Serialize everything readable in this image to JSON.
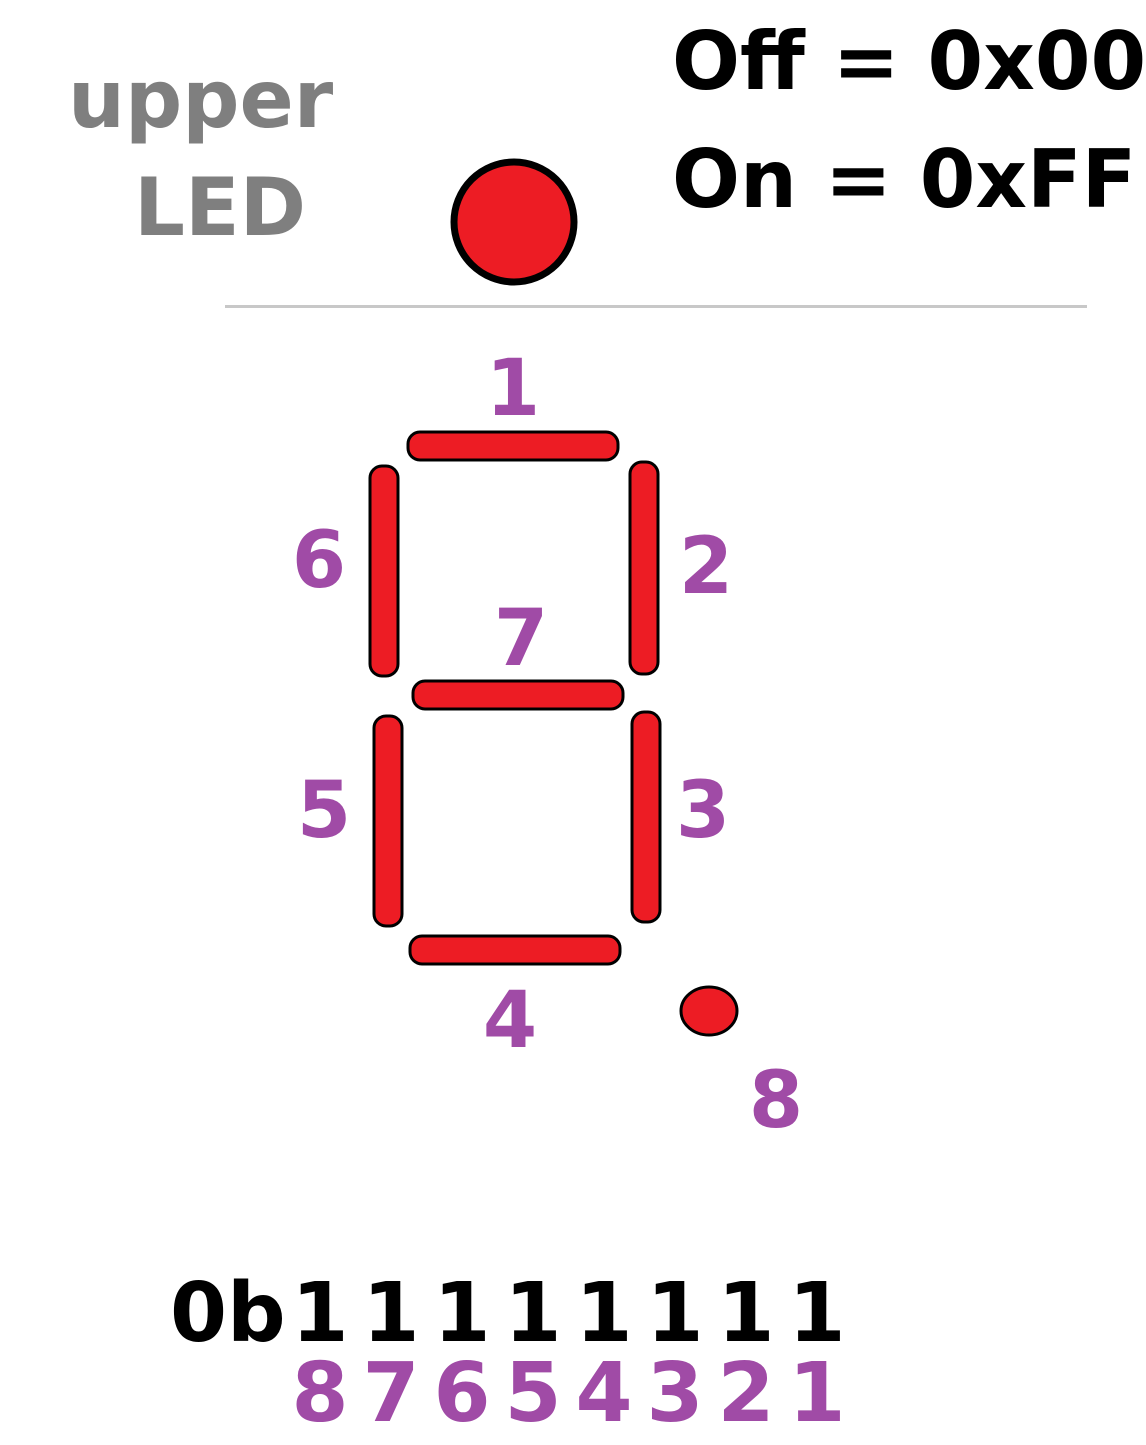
{
  "upper_led": {
    "line1": "upper",
    "line2": "LED"
  },
  "legend": {
    "off": "Off = 0x00",
    "on": "On = 0xFF"
  },
  "segments": [
    "1",
    "2",
    "3",
    "4",
    "5",
    "6",
    "7",
    "8"
  ],
  "binary": {
    "prefix": "0b",
    "bits": [
      "1",
      "1",
      "1",
      "1",
      "1",
      "1",
      "1",
      "1"
    ],
    "positions": [
      "8",
      "7",
      "6",
      "5",
      "4",
      "3",
      "2",
      "1"
    ]
  },
  "colors": {
    "segment": "#ed1c24",
    "outline": "#000000",
    "number": "#a04ba6",
    "label": "#7f7f7f"
  }
}
